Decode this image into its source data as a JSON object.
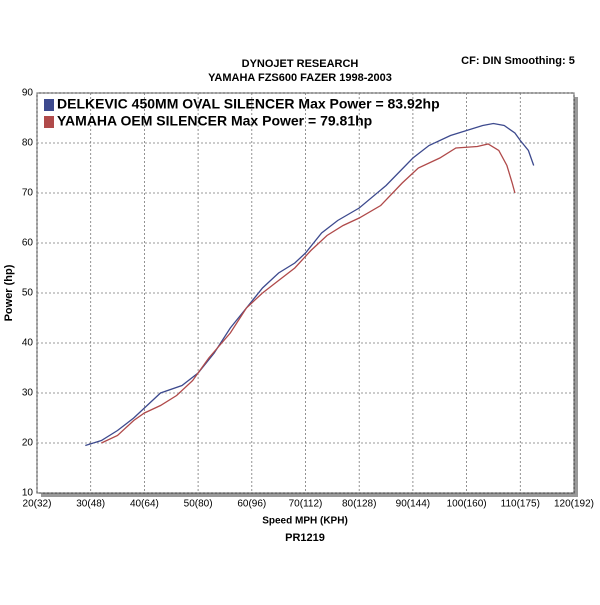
{
  "chart_data": {
    "type": "line",
    "title": "DYNOJET RESEARCH",
    "subtitle": "YAMAHA FZS600 FAZER 1998-2003",
    "annotation": "CF: DIN  Smoothing: 5",
    "x_label": "Speed MPH (KPH)",
    "y_label": "Power (hp)",
    "footer": "PR1219",
    "xlim": [
      20,
      120
    ],
    "ylim": [
      10,
      90
    ],
    "xticks": [
      {
        "value": 20,
        "label": "20(32)"
      },
      {
        "value": 30,
        "label": "30(48)"
      },
      {
        "value": 40,
        "label": "40(64)"
      },
      {
        "value": 50,
        "label": "50(80)"
      },
      {
        "value": 60,
        "label": "60(96)"
      },
      {
        "value": 70,
        "label": "70(112)"
      },
      {
        "value": 80,
        "label": "80(128)"
      },
      {
        "value": 90,
        "label": "90(144)"
      },
      {
        "value": 100,
        "label": "100(160)"
      },
      {
        "value": 110,
        "label": "110(175)"
      },
      {
        "value": 120,
        "label": "120(192)"
      }
    ],
    "yticks": [
      10,
      20,
      30,
      40,
      50,
      60,
      70,
      80,
      90
    ],
    "grid": true,
    "series": [
      {
        "name": "DELKEVIC 450MM OVAL SILENCER Max Power  = 83.92hp",
        "color": "#3d4a8e",
        "x": [
          29,
          32,
          35,
          38,
          40,
          43,
          47,
          50,
          53,
          56,
          59,
          62,
          65,
          68,
          70,
          73,
          76,
          80,
          85,
          90,
          93,
          97,
          100,
          103,
          105,
          107,
          109,
          110,
          111.5,
          112.5
        ],
        "values": [
          19.5,
          20.5,
          22.5,
          25,
          27,
          30,
          31.5,
          34,
          38,
          43,
          47,
          51,
          54,
          56,
          58,
          62,
          64.5,
          67,
          71.5,
          77,
          79.5,
          81.5,
          82.5,
          83.5,
          83.9,
          83.5,
          82,
          80.5,
          78.5,
          75.5
        ]
      },
      {
        "name": "YAMAHA OEM SILENCER Max Power = 79.81hp",
        "color": "#b04a4a",
        "x": [
          32,
          35,
          38,
          40,
          43,
          46,
          49,
          52,
          56,
          59,
          62,
          65,
          68,
          71,
          74,
          77,
          80,
          84,
          88,
          91,
          95,
          98,
          102,
          104,
          106,
          107.5,
          108.5,
          109
        ],
        "values": [
          20,
          21.5,
          24.5,
          26,
          27.5,
          29.5,
          32.5,
          37,
          42,
          47,
          50,
          52.5,
          55,
          58.5,
          61.5,
          63.5,
          65,
          67.5,
          72,
          75,
          77,
          79,
          79.3,
          79.8,
          78.5,
          75.5,
          72,
          70
        ]
      }
    ]
  }
}
